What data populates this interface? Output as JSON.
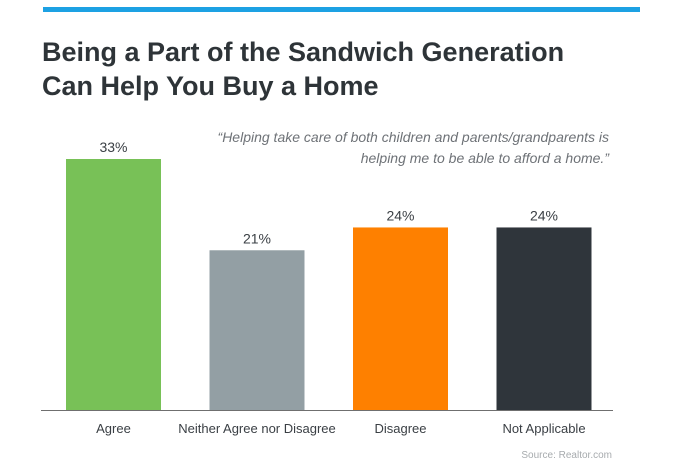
{
  "header": {
    "accent_color": "#1da1e3",
    "title_lines": [
      "Being a Part of the Sandwich Generation",
      "Can Help You Buy a Home"
    ]
  },
  "quote": {
    "lines": [
      "“Helping take care of both children and parents/grandparents is",
      "helping me to be able to afford a home.”"
    ]
  },
  "chart_data": {
    "type": "bar",
    "categories": [
      "Agree",
      "Neither Agree nor Disagree",
      "Disagree",
      "Not Applicable"
    ],
    "values": [
      33,
      21,
      24,
      24
    ],
    "value_labels": [
      "33%",
      "21%",
      "24%",
      "24%"
    ],
    "colors": [
      "#78c157",
      "#939fa4",
      "#fe8000",
      "#2f353b"
    ],
    "title": "",
    "xlabel": "",
    "ylabel": "",
    "ylim": [
      0,
      33
    ],
    "grid": false
  },
  "source": "Source: Realtor.com"
}
